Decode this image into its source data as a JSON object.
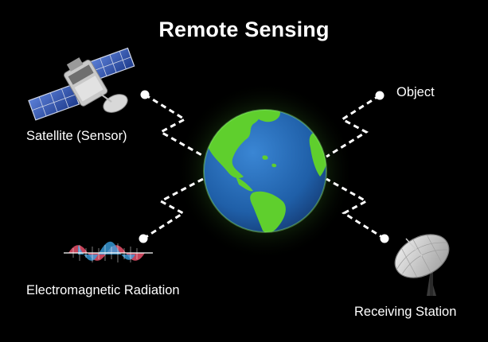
{
  "title": "Remote Sensing",
  "labels": {
    "satellite": "Satellite (Sensor)",
    "object": "Object",
    "radiation": "Electromagnetic Radiation",
    "station": "Receiving Station"
  },
  "colors": {
    "background": "#000000",
    "text": "#ffffff",
    "ocean": "#1f5fa8",
    "land": "#5fcf2d",
    "glow": "#8fff6a",
    "wave_red": "#e8506a",
    "wave_blue": "#3aa0e0"
  },
  "icons": [
    "satellite-icon",
    "globe-icon",
    "wave-icon",
    "dish-antenna-icon"
  ]
}
